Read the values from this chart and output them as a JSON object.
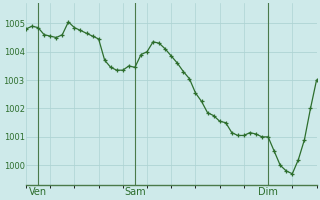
{
  "background_color": "#ceeaea",
  "grid_color": "#aed4d4",
  "line_color": "#2d6e2d",
  "marker_color": "#2d6e2d",
  "ylabel_ticks": [
    1000,
    1001,
    1002,
    1003,
    1004,
    1005
  ],
  "xlim": [
    0,
    48
  ],
  "ylim": [
    999.3,
    1005.7
  ],
  "x_tick_labels": [
    "Ven",
    "Sam",
    "Dim"
  ],
  "x_tick_positions": [
    2,
    18,
    40
  ],
  "vline_positions": [
    2,
    18,
    40
  ],
  "num_grid_x": 12,
  "data_x": [
    0,
    1,
    2,
    3,
    4,
    5,
    6,
    7,
    8,
    9,
    10,
    11,
    12,
    13,
    14,
    15,
    16,
    17,
    18,
    19,
    20,
    21,
    22,
    23,
    24,
    25,
    26,
    27,
    28,
    29,
    30,
    31,
    32,
    33,
    34,
    35,
    36,
    37,
    38,
    39,
    40,
    41,
    42,
    43,
    44,
    45,
    46,
    47,
    48
  ],
  "data_y": [
    1004.8,
    1004.9,
    1004.85,
    1004.6,
    1004.55,
    1004.5,
    1004.6,
    1005.05,
    1004.85,
    1004.75,
    1004.65,
    1004.55,
    1004.45,
    1003.7,
    1003.45,
    1003.35,
    1003.35,
    1003.5,
    1003.45,
    1003.9,
    1004.0,
    1004.35,
    1004.3,
    1004.1,
    1003.85,
    1003.6,
    1003.3,
    1003.05,
    1002.55,
    1002.25,
    1001.85,
    1001.75,
    1001.55,
    1001.5,
    1001.15,
    1001.05,
    1001.05,
    1001.15,
    1001.1,
    1001.0,
    1001.0,
    1000.5,
    1000.0,
    999.8,
    999.7,
    1000.2,
    1000.9,
    1002.0,
    1003.0
  ],
  "ylabel_fontsize": 6,
  "xlabel_fontsize": 7,
  "tick_color": "#2d6e2d",
  "bottom_spine_color": "#4a7a4a",
  "vline_color": "#4a7a4a",
  "vline_lw": 0.8
}
